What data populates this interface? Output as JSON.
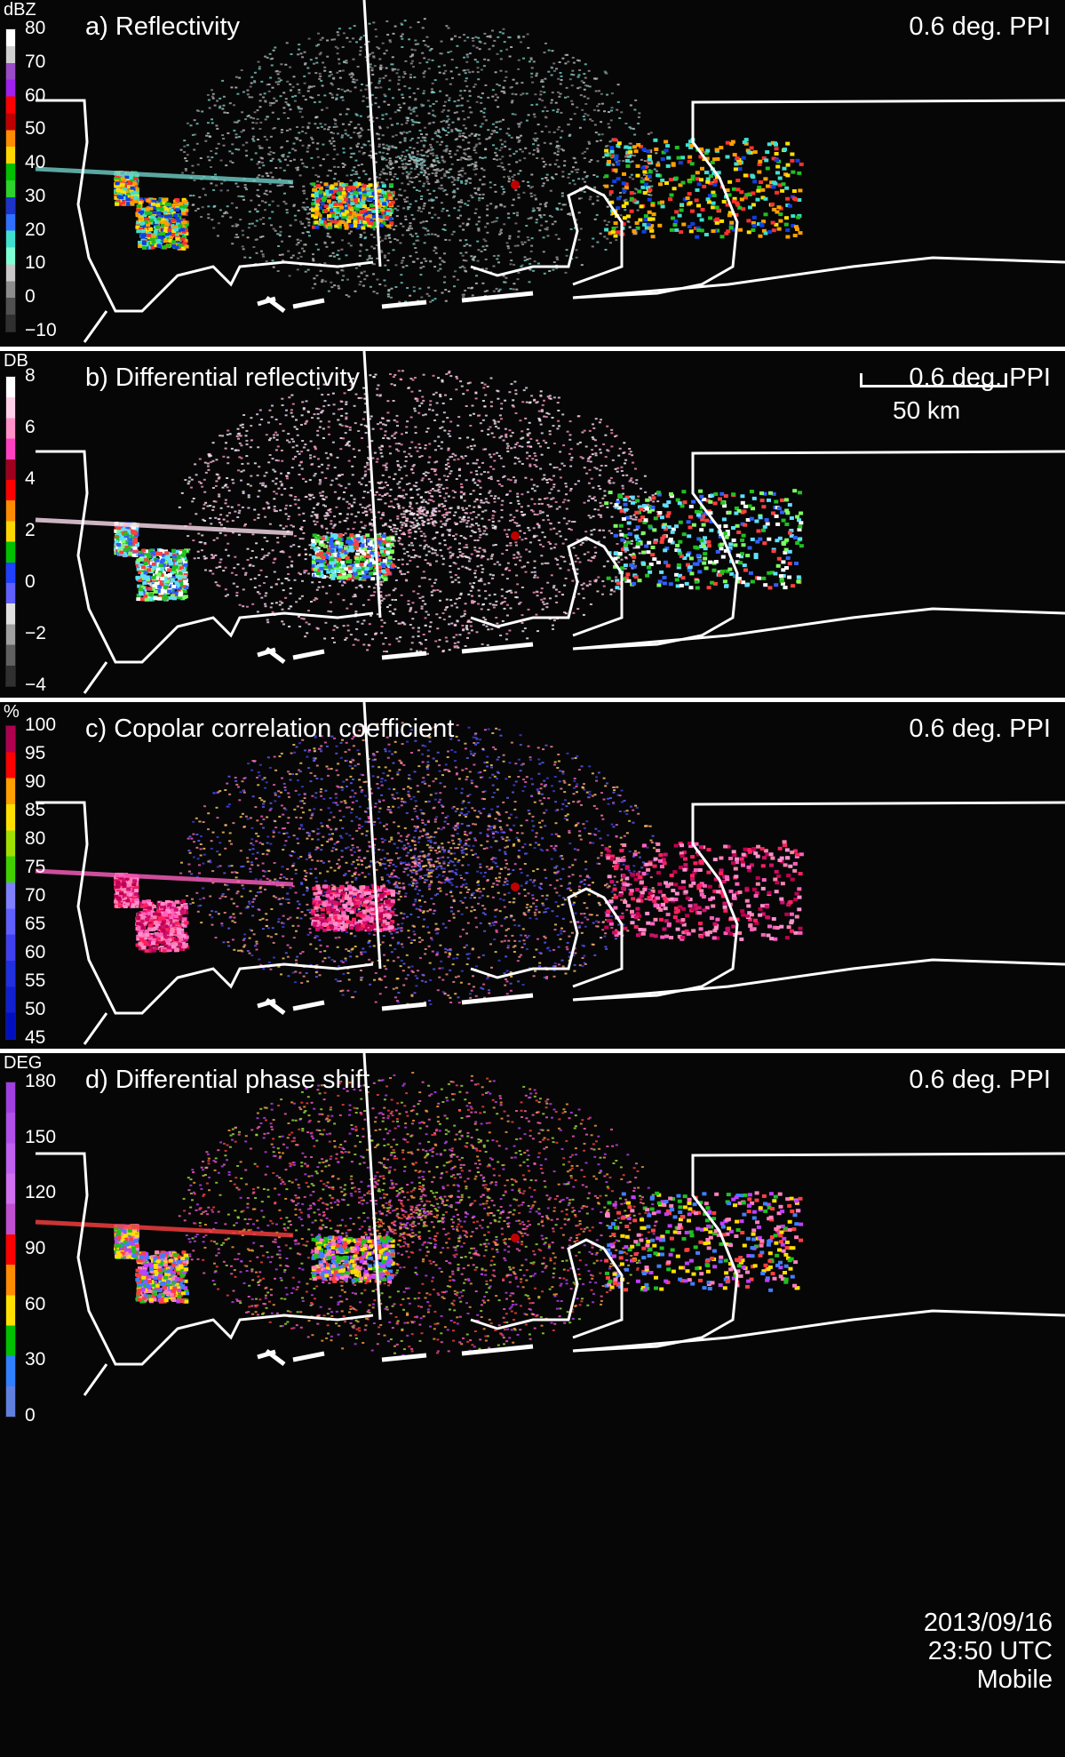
{
  "panels": [
    {
      "title": "a) Reflectivity",
      "ppi": "0.6 deg. PPI",
      "unit": "dBZ",
      "ticks": [
        "80",
        "70",
        "60",
        "50",
        "40",
        "30",
        "20",
        "10",
        "0",
        "−10"
      ],
      "colorbar": [
        "#ffffff",
        "#d0d0d0",
        "#9a4cc8",
        "#a020f0",
        "#ff0000",
        "#c00000",
        "#ff8c00",
        "#ffd700",
        "#00c000",
        "#2bd32b",
        "#1c34c8",
        "#3070ff",
        "#40e0d0",
        "#7fffd4",
        "#c8c8c8",
        "#8c8c8c",
        "#505050",
        "#303030"
      ],
      "palette": [
        "#9a9a9a",
        "#b0b0b0",
        "#c8c8c8",
        "#808080",
        "#6fd0c8"
      ],
      "storm_palette": [
        "#ff3030",
        "#ffa000",
        "#ffe000",
        "#20c020",
        "#1040e0",
        "#40e0d0"
      ]
    },
    {
      "title": "b) Differential reflectivity",
      "ppi": "0.6 deg. PPI",
      "unit": "DB",
      "ticks": [
        "8",
        "6",
        "4",
        "2",
        "0",
        "−2",
        "−4"
      ],
      "colorbar": [
        "#ffffff",
        "#ffd0e8",
        "#ff90c8",
        "#ff40c0",
        "#a00020",
        "#ff0000",
        "#ff8c00",
        "#ffd700",
        "#00c000",
        "#2040ff",
        "#6060ff",
        "#e0e0e0",
        "#a0a0a0",
        "#606060",
        "#303030"
      ],
      "palette": [
        "#ffffff",
        "#ffc0dc",
        "#ff90c0",
        "#f0e0ff",
        "#ffe0f0"
      ],
      "storm_palette": [
        "#20c020",
        "#3060ff",
        "#60e0ff",
        "#80ff60",
        "#ffffff",
        "#ff4040"
      ]
    },
    {
      "title": "c) Copolar correlation coefficient",
      "ppi": "0.6 deg. PPI",
      "unit": "%",
      "ticks": [
        "100",
        "95",
        "90",
        "85",
        "80",
        "75",
        "70",
        "65",
        "60",
        "55",
        "50",
        "45"
      ],
      "colorbar": [
        "#b00050",
        "#ff0000",
        "#ffa000",
        "#ffe000",
        "#a0e000",
        "#40d000",
        "#8080ff",
        "#6060ff",
        "#4040f0",
        "#2030e0",
        "#1020d0",
        "#0010c0"
      ],
      "palette": [
        "#6060ff",
        "#ff9090",
        "#ffd060",
        "#4040e0",
        "#ff60c0"
      ],
      "storm_palette": [
        "#d0106a",
        "#ff60c0",
        "#c00050",
        "#ff90d0",
        "#ff2060",
        "#ff80b0"
      ]
    },
    {
      "title": "d) Differential phase shift",
      "ppi": "0.6 deg. PPI",
      "unit": "DEG",
      "ticks": [
        "180",
        "150",
        "120",
        "90",
        "60",
        "30",
        "0"
      ],
      "colorbar": [
        "#a040e0",
        "#b050e8",
        "#c060f0",
        "#d070f0",
        "#c050d0",
        "#ff0000",
        "#ff8c00",
        "#ffe000",
        "#00c000",
        "#3080ff",
        "#6080e0"
      ],
      "palette": [
        "#ff60c0",
        "#c040ff",
        "#ffa040",
        "#a0e040",
        "#ff4040"
      ],
      "storm_palette": [
        "#4080ff",
        "#20c020",
        "#ffe000",
        "#ff4040",
        "#c040ff",
        "#ff80c0"
      ]
    }
  ],
  "scale_bar": "50 km",
  "timestamp": {
    "date": "2013/09/16",
    "time": "23:50 UTC",
    "site": "Mobile"
  }
}
